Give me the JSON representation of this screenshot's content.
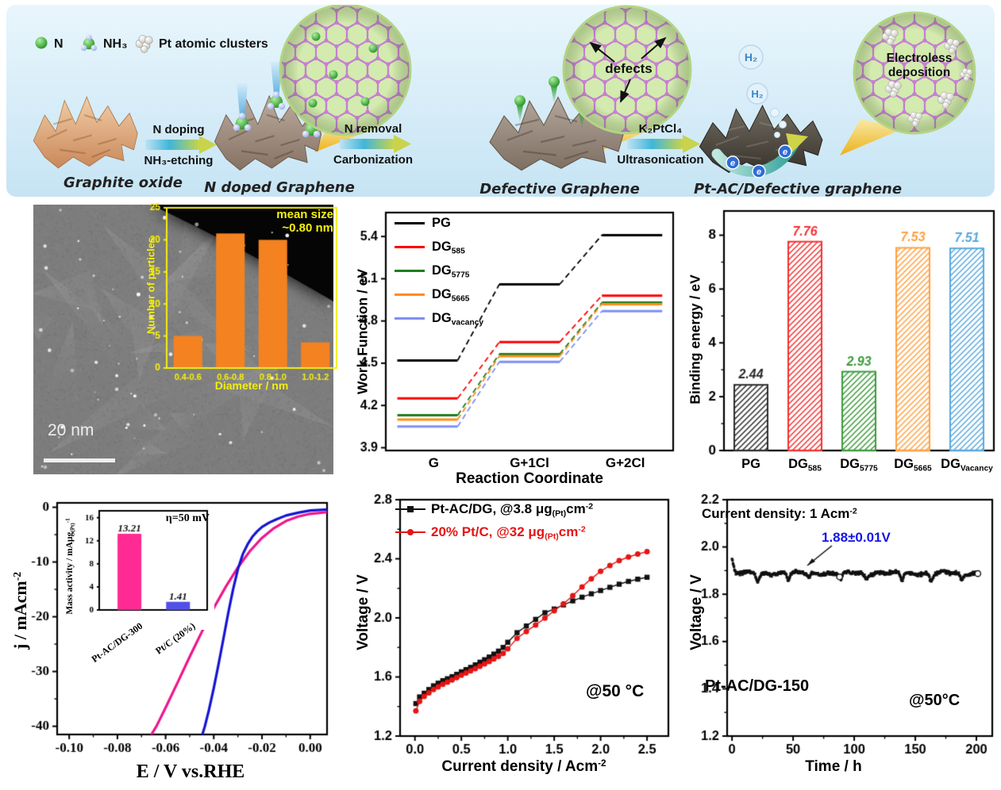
{
  "schematic": {
    "legend": {
      "n": "N",
      "nh3": "NH₃",
      "pt": "Pt atomic clusters"
    },
    "stage1": "Graphite oxide",
    "stage2": "N doped Graphene",
    "stage3": "Defective Graphene",
    "stage4": "Pt-AC/Defective graphene",
    "arrow1_top": "N doping",
    "arrow1_bottom": "NH₃-etching",
    "arrow2_top": "N removal",
    "arrow2_bottom": "Carbonization",
    "arrow3_top": "K₂PtCl₄",
    "arrow3_bottom": "Ultrasonication",
    "defects": "defects",
    "electroless_line1": "Electroless",
    "electroless_line2": "deposition",
    "h2": "H₂"
  },
  "tem": {
    "scale_bar": "20 nm",
    "inset_title_line1": "mean size",
    "inset_title_line2": "~0.80 nm",
    "inset_xlabel": "Diameter / nm",
    "inset_ylabel": "Number of particles"
  },
  "panels": {
    "work_function": {
      "xlabel": "Reaction Coordinate",
      "ylabel": "Work Function / eV"
    },
    "binding_energy": {
      "ylabel": "Binding energy / eV"
    },
    "her": {
      "xlabel": "E / V vs.RHE",
      "ylabel": "j / mAcm[sup]-2[/sup]",
      "inset_ylabel": "Mass activity / mAμg[sub](Pt)[/sub][sup]-1[/sup]",
      "inset_annotation": "η=50 mV"
    },
    "mea": {
      "xlabel": "Current density / Acm[sup]-2[/sup]",
      "ylabel": "Voltage / V",
      "temp": "@50 °C",
      "legend1": "Pt-AC/DG, @3.8 μg[sub](Pt)[/sub]cm[sup]-2[/sup]",
      "legend2": "20% Pt/C, @32 μg[sub](Pt)[/sub]cm[sup]-2[/sup]"
    },
    "stability": {
      "xlabel": "Time / h",
      "ylabel": "Voltage / V",
      "current": "Current density: 1 Acm[sup]-2[/sup]",
      "voltage": "1.88±0.01V",
      "sample": "Pt-AC/DG-150",
      "temp": "@50°C"
    }
  },
  "chart_data": [
    {
      "id": "size_histogram",
      "type": "bar",
      "categories": [
        "0.4-0.6",
        "0.6-0.8",
        "0.8-1.0",
        "1.0-1.2"
      ],
      "values": [
        5,
        21,
        20,
        4
      ],
      "xlabel": "Diameter / nm",
      "ylabel": "Number of particles",
      "ylim": [
        0,
        25
      ],
      "yticks": [
        0,
        5,
        10,
        15,
        20,
        25
      ],
      "annotation": "mean size ~0.80 nm",
      "bar_color": "#f58220",
      "axis_color": "#f5ef0c"
    },
    {
      "id": "work_function",
      "type": "line",
      "subtype": "energy-steps",
      "categories": [
        "G",
        "G+1Cl",
        "G+2Cl"
      ],
      "xlabel": "Reaction Coordinate",
      "ylabel": "Work Function / eV",
      "ylim": [
        3.9,
        5.55
      ],
      "yticks": [
        3.9,
        4.2,
        4.5,
        4.8,
        5.1,
        5.4
      ],
      "legend_position": "top-left",
      "series": [
        {
          "name": "PG",
          "label": "PG",
          "color": "#000000",
          "values": [
            4.52,
            5.06,
            5.41
          ]
        },
        {
          "name": "DG585",
          "label": "DG[sub]585[/sub]",
          "color": "#fe0000",
          "values": [
            4.25,
            4.65,
            4.98
          ]
        },
        {
          "name": "DG5775",
          "label": "DG[sub]5775[/sub]",
          "color": "#1e7d1e",
          "values": [
            4.13,
            4.565,
            4.93
          ]
        },
        {
          "name": "DG5665",
          "label": "DG[sub]5665[/sub]",
          "color": "#ff8c1a",
          "values": [
            4.1,
            4.55,
            4.92
          ]
        },
        {
          "name": "DGvacancy",
          "label": "DG[sub]vacancy[/sub]",
          "color": "#7f8ff0",
          "values": [
            4.05,
            4.51,
            4.87
          ]
        }
      ]
    },
    {
      "id": "binding_energy",
      "type": "bar",
      "categories": [
        "PG",
        "DG[sub]585[/sub]",
        "DG[sub]5775[/sub]",
        "DG[sub]5665[/sub]",
        "DG[sub]Vacancy[/sub]"
      ],
      "values": [
        2.44,
        7.76,
        2.93,
        7.53,
        7.51
      ],
      "value_labels": [
        "2.44",
        "7.76",
        "2.93",
        "7.53",
        "7.51"
      ],
      "colors": [
        "#2b2b2b",
        "#f43030",
        "#3c9a3c",
        "#ffa040",
        "#58a8dd"
      ],
      "ylabel": "Binding energy / eV",
      "ylim": [
        0,
        8.9
      ],
      "yticks": [
        0,
        2,
        4,
        6,
        8
      ],
      "hatch": true
    },
    {
      "id": "her_lsv",
      "type": "line",
      "xlabel": "E / V vs.RHE",
      "ylabel": "j / mAcm-2",
      "xlim": [
        -0.105,
        0.007
      ],
      "ylim": [
        -41.5,
        0.8
      ],
      "xticks": [
        -0.1,
        -0.08,
        -0.06,
        -0.04,
        -0.02,
        0.0
      ],
      "yticks": [
        0,
        -10,
        -20,
        -30,
        -40
      ],
      "series": [
        {
          "name": "Pt-AC/DG-300",
          "color": "#f0148c",
          "points": [
            [
              -0.066,
              -41.6
            ],
            [
              -0.0638,
              -40
            ],
            [
              -0.06,
              -36.6
            ],
            [
              -0.055,
              -32
            ],
            [
              -0.05,
              -27.3
            ],
            [
              -0.045,
              -22.8
            ],
            [
              -0.04,
              -18.4
            ],
            [
              -0.035,
              -14.5
            ],
            [
              -0.03,
              -11
            ],
            [
              -0.025,
              -8
            ],
            [
              -0.02,
              -5.6
            ],
            [
              -0.015,
              -3.8
            ],
            [
              -0.01,
              -2.5
            ],
            [
              -0.005,
              -1.7
            ],
            [
              0.0,
              -1.2
            ],
            [
              0.007,
              -0.9
            ]
          ]
        },
        {
          "name": "Pt/C",
          "color": "#1414d4",
          "points": [
            [
              -0.0448,
              -41.6
            ],
            [
              -0.0437,
              -40
            ],
            [
              -0.042,
              -37
            ],
            [
              -0.04,
              -33
            ],
            [
              -0.038,
              -28.6
            ],
            [
              -0.036,
              -24
            ],
            [
              -0.034,
              -19.3
            ],
            [
              -0.032,
              -15
            ],
            [
              -0.03,
              -11.3
            ],
            [
              -0.028,
              -8.6
            ],
            [
              -0.026,
              -6.8
            ],
            [
              -0.024,
              -5.4
            ],
            [
              -0.022,
              -4.4
            ],
            [
              -0.02,
              -3.6
            ],
            [
              -0.017,
              -2.8
            ],
            [
              -0.014,
              -2.2
            ],
            [
              -0.01,
              -1.5
            ],
            [
              -0.005,
              -1.0
            ],
            [
              0.0,
              -0.6
            ],
            [
              0.007,
              -0.4
            ]
          ]
        }
      ]
    },
    {
      "id": "mass_activity",
      "type": "bar",
      "categories": [
        "Pt-AC/DG-300",
        "Pt/C (20%)"
      ],
      "values": [
        13.21,
        1.41
      ],
      "value_labels": [
        "13.21",
        "1.41"
      ],
      "colors": [
        "#ff2a93",
        "#5050e8"
      ],
      "ylabel": "Mass activity / mAμg(Pt)-1",
      "ylim": [
        0,
        17.2
      ],
      "yticks": [
        0,
        4,
        8,
        12,
        16
      ],
      "annotation": "η=50 mV"
    },
    {
      "id": "mea_polarization",
      "type": "scatter",
      "xlabel": "Current density / Acm-2",
      "ylabel": "Voltage / V",
      "xlim": [
        -0.16,
        2.73
      ],
      "ylim": [
        1.2,
        2.8
      ],
      "xticks": [
        0.0,
        0.5,
        1.0,
        1.5,
        2.0,
        2.5
      ],
      "yticks": [
        1.2,
        1.6,
        2.0,
        2.4,
        2.8
      ],
      "annotation": "@50 °C",
      "x": [
        0.01,
        0.05,
        0.1,
        0.15,
        0.2,
        0.25,
        0.3,
        0.35,
        0.4,
        0.45,
        0.5,
        0.55,
        0.6,
        0.65,
        0.7,
        0.75,
        0.8,
        0.85,
        0.9,
        0.95,
        1.0,
        1.1,
        1.2,
        1.3,
        1.4,
        1.5,
        1.6,
        1.7,
        1.8,
        1.9,
        2.0,
        2.1,
        2.2,
        2.3,
        2.4,
        2.5
      ],
      "series": [
        {
          "name": "Pt-AC/DG, @3.8 ug(Pt)cm-2",
          "color": "#111111",
          "marker": "square",
          "y": [
            1.42,
            1.465,
            1.49,
            1.515,
            1.54,
            1.558,
            1.575,
            1.588,
            1.602,
            1.618,
            1.635,
            1.65,
            1.665,
            1.682,
            1.7,
            1.717,
            1.735,
            1.755,
            1.775,
            1.8,
            1.835,
            1.9,
            1.945,
            1.99,
            2.035,
            2.06,
            2.088,
            2.115,
            2.14,
            2.163,
            2.185,
            2.207,
            2.228,
            2.247,
            2.262,
            2.275
          ]
        },
        {
          "name": "20% Pt/C, @32 ug(Pt)cm-2",
          "color": "#e51515",
          "marker": "circle",
          "y": [
            1.37,
            1.435,
            1.468,
            1.492,
            1.515,
            1.533,
            1.55,
            1.565,
            1.58,
            1.596,
            1.612,
            1.627,
            1.642,
            1.657,
            1.672,
            1.688,
            1.705,
            1.722,
            1.74,
            1.76,
            1.79,
            1.862,
            1.908,
            1.952,
            1.998,
            2.048,
            2.095,
            2.15,
            2.21,
            2.265,
            2.315,
            2.355,
            2.388,
            2.412,
            2.432,
            2.448
          ]
        }
      ]
    },
    {
      "id": "stability",
      "type": "line",
      "xlabel": "Time / h",
      "ylabel": "Voltage / V",
      "xlim": [
        -4,
        213
      ],
      "ylim": [
        1.2,
        2.2
      ],
      "xticks": [
        0,
        50,
        100,
        150,
        200
      ],
      "yticks": [
        1.2,
        1.4,
        1.6,
        1.8,
        2.0,
        2.2
      ],
      "base_voltage": 1.889,
      "start_voltage": 1.95,
      "duration_h": 202,
      "mean_label": "1.88±0.01V",
      "dips": [
        [
          21,
          1.853
        ],
        [
          46,
          1.858
        ],
        [
          63,
          1.872
        ],
        [
          89,
          1.861
        ],
        [
          110,
          1.868
        ],
        [
          139,
          1.861
        ],
        [
          163,
          1.856
        ],
        [
          188,
          1.864
        ]
      ],
      "open_markers": [
        88,
        201
      ],
      "color": "#111111"
    }
  ]
}
